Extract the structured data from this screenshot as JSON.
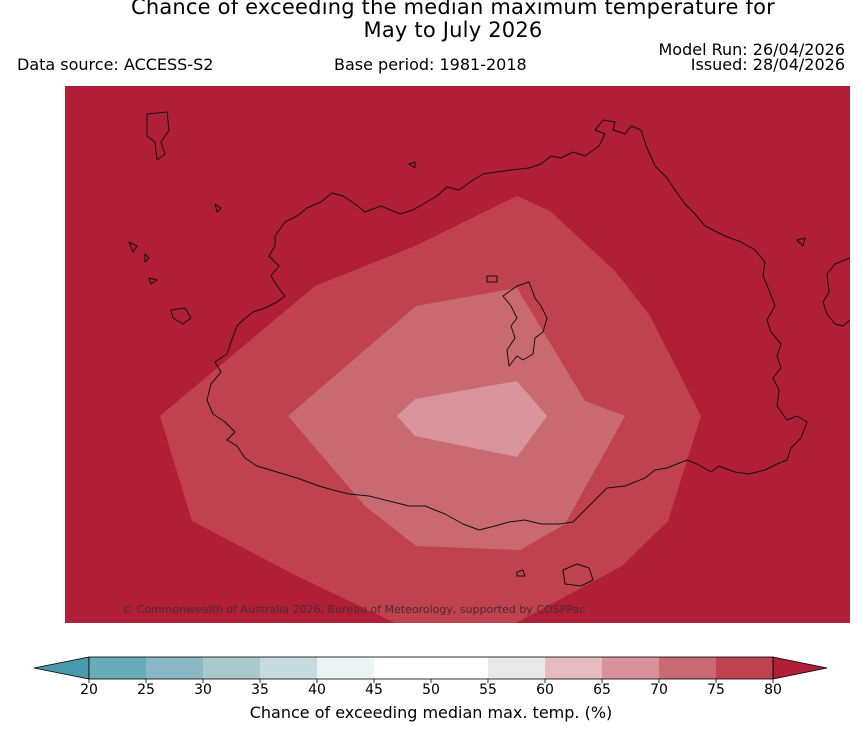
{
  "title": "Chance of exceeding the median maximum temperature for\nMay to July 2026",
  "data_source": "Data source: ACCESS-S2",
  "base_period": "Base period: 1981-2018",
  "model_run": "Model Run: 26/04/2026",
  "issued": "Issued: 28/04/2026",
  "copyright": "© Commonwealth of Australia 2026, Bureau of Meteorology, supported by COSPPac",
  "map": {
    "background_color": "#b01e38",
    "contour_colors": [
      "#c04251",
      "#c96a72",
      "#d8949a"
    ],
    "coastline_color": "#111111"
  },
  "legend": {
    "title": "Chance of exceeding median max. temp. (%)",
    "tick_labels": [
      "20",
      "25",
      "30",
      "35",
      "40",
      "45",
      "50",
      "55",
      "60",
      "65",
      "70",
      "75",
      "80"
    ],
    "lower_extend_color": "#4a9aae",
    "upper_extend_color": "#b01e38",
    "bin_colors": [
      "#6aabb9",
      "#89b8c4",
      "#a8c8cd",
      "#c6dbdf",
      "#eaf3f5",
      "#ffffff",
      "#ffffff",
      "#e9e9e9",
      "#e6bcc0",
      "#d8929a",
      "#c96a72",
      "#c04251"
    ]
  }
}
